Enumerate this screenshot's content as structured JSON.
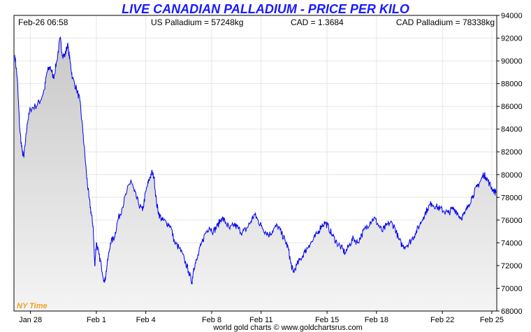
{
  "chart_data": {
    "type": "area",
    "title": "LIVE CANADIAN PALLADIUM - PRICE PER KILO",
    "header": {
      "timestamp": "Feb-26  06:58",
      "us_price": "US Palladium = 57248kg",
      "cad_rate": "CAD = 1.3684",
      "cad_price": "CAD Palladium = 78338kg"
    },
    "timezone_label": "NY Time",
    "footer": "world gold charts © www.goldchartsrus.com",
    "ylim": [
      68000,
      94000
    ],
    "y_ticks": [
      "94000",
      "92000",
      "90000",
      "88000",
      "86000",
      "84000",
      "82000",
      "80000",
      "78000",
      "76000",
      "74000",
      "72000",
      "70000",
      "68000"
    ],
    "y_tick_values": [
      94000,
      92000,
      90000,
      88000,
      86000,
      84000,
      82000,
      80000,
      78000,
      76000,
      74000,
      72000,
      70000,
      68000
    ],
    "x_range": [
      27.0,
      56.3
    ],
    "x_ticks": [
      {
        "label": "Jan 28",
        "day": 28
      },
      {
        "label": "Feb 1",
        "day": 32
      },
      {
        "label": "Feb 4",
        "day": 35
      },
      {
        "label": "Feb 8",
        "day": 39
      },
      {
        "label": "Feb 11",
        "day": 42
      },
      {
        "label": "Feb 15",
        "day": 46
      },
      {
        "label": "Feb 18",
        "day": 49
      },
      {
        "label": "Feb 22",
        "day": 53
      },
      {
        "label": "Feb 25",
        "day": 56
      }
    ],
    "series": [
      {
        "color": "#0000ee",
        "points": [
          [
            27.05,
            90500
          ],
          [
            27.2,
            88500
          ],
          [
            27.35,
            84000
          ],
          [
            27.5,
            82000
          ],
          [
            27.6,
            81500
          ],
          [
            27.8,
            84500
          ],
          [
            28.0,
            85800
          ],
          [
            28.3,
            86000
          ],
          [
            28.6,
            86500
          ],
          [
            28.85,
            87500
          ],
          [
            29.0,
            89000
          ],
          [
            29.2,
            89500
          ],
          [
            29.4,
            88500
          ],
          [
            29.6,
            90000
          ],
          [
            29.8,
            92000
          ],
          [
            29.95,
            90500
          ],
          [
            30.1,
            90500
          ],
          [
            30.25,
            91500
          ],
          [
            30.4,
            90000
          ],
          [
            30.55,
            88500
          ],
          [
            30.8,
            87500
          ],
          [
            31.0,
            86500
          ],
          [
            31.2,
            83500
          ],
          [
            31.4,
            80000
          ],
          [
            31.55,
            78000
          ],
          [
            31.7,
            76500
          ],
          [
            31.8,
            75500
          ],
          [
            31.9,
            72000
          ],
          [
            32.0,
            74000
          ],
          [
            32.15,
            73000
          ],
          [
            32.3,
            72000
          ],
          [
            32.5,
            70500
          ],
          [
            32.65,
            72000
          ],
          [
            32.85,
            74000
          ],
          [
            33.1,
            74500
          ],
          [
            33.3,
            76000
          ],
          [
            33.55,
            77000
          ],
          [
            33.85,
            78500
          ],
          [
            34.1,
            79500
          ],
          [
            34.3,
            78500
          ],
          [
            34.55,
            77500
          ],
          [
            34.8,
            76800
          ],
          [
            35.0,
            78500
          ],
          [
            35.2,
            79500
          ],
          [
            35.35,
            80200
          ],
          [
            35.5,
            79800
          ],
          [
            35.65,
            77500
          ],
          [
            35.8,
            76500
          ],
          [
            36.0,
            76000
          ],
          [
            36.25,
            75800
          ],
          [
            36.5,
            75500
          ],
          [
            36.75,
            74000
          ],
          [
            37.05,
            73500
          ],
          [
            37.35,
            72500
          ],
          [
            37.6,
            71500
          ],
          [
            37.8,
            70500
          ],
          [
            37.9,
            71800
          ],
          [
            38.1,
            72500
          ],
          [
            38.35,
            73800
          ],
          [
            38.6,
            74800
          ],
          [
            38.85,
            75400
          ],
          [
            39.1,
            75000
          ],
          [
            39.35,
            75500
          ],
          [
            39.6,
            76200
          ],
          [
            39.85,
            75800
          ],
          [
            40.1,
            75200
          ],
          [
            40.35,
            75600
          ],
          [
            40.6,
            75300
          ],
          [
            40.85,
            74900
          ],
          [
            41.1,
            75200
          ],
          [
            41.35,
            75800
          ],
          [
            41.6,
            76500
          ],
          [
            41.8,
            76000
          ],
          [
            42.0,
            75500
          ],
          [
            42.25,
            75000
          ],
          [
            42.5,
            74700
          ],
          [
            42.75,
            75200
          ],
          [
            43.0,
            75500
          ],
          [
            43.25,
            74800
          ],
          [
            43.45,
            74200
          ],
          [
            43.65,
            73500
          ],
          [
            43.8,
            72200
          ],
          [
            43.95,
            71400
          ],
          [
            44.15,
            72000
          ],
          [
            44.4,
            72600
          ],
          [
            44.65,
            73200
          ],
          [
            44.9,
            73800
          ],
          [
            45.15,
            74200
          ],
          [
            45.4,
            74800
          ],
          [
            45.65,
            75500
          ],
          [
            45.9,
            75800
          ],
          [
            46.1,
            75300
          ],
          [
            46.35,
            74600
          ],
          [
            46.6,
            74000
          ],
          [
            46.85,
            73600
          ],
          [
            47.1,
            73100
          ],
          [
            47.35,
            73800
          ],
          [
            47.6,
            74400
          ],
          [
            47.85,
            74000
          ],
          [
            48.1,
            74700
          ],
          [
            48.35,
            75300
          ],
          [
            48.6,
            75800
          ],
          [
            48.85,
            76200
          ],
          [
            49.1,
            75600
          ],
          [
            49.35,
            75000
          ],
          [
            49.6,
            75500
          ],
          [
            49.85,
            75800
          ],
          [
            50.1,
            75400
          ],
          [
            50.35,
            74300
          ],
          [
            50.6,
            73700
          ],
          [
            50.85,
            73800
          ],
          [
            51.1,
            74200
          ],
          [
            51.35,
            74800
          ],
          [
            51.6,
            75500
          ],
          [
            51.85,
            76300
          ],
          [
            52.1,
            77000
          ],
          [
            52.35,
            77500
          ],
          [
            52.6,
            77200
          ],
          [
            52.85,
            77000
          ],
          [
            53.1,
            76800
          ],
          [
            53.35,
            76600
          ],
          [
            53.6,
            77000
          ],
          [
            53.85,
            76800
          ],
          [
            54.1,
            76200
          ],
          [
            54.35,
            76500
          ],
          [
            54.6,
            77400
          ],
          [
            54.85,
            78200
          ],
          [
            55.1,
            78900
          ],
          [
            55.3,
            79400
          ],
          [
            55.5,
            80000
          ],
          [
            55.65,
            79800
          ],
          [
            55.85,
            79200
          ],
          [
            56.05,
            78700
          ],
          [
            56.25,
            78400
          ]
        ]
      }
    ],
    "grid": true,
    "xlabel": "",
    "ylabel": ""
  }
}
